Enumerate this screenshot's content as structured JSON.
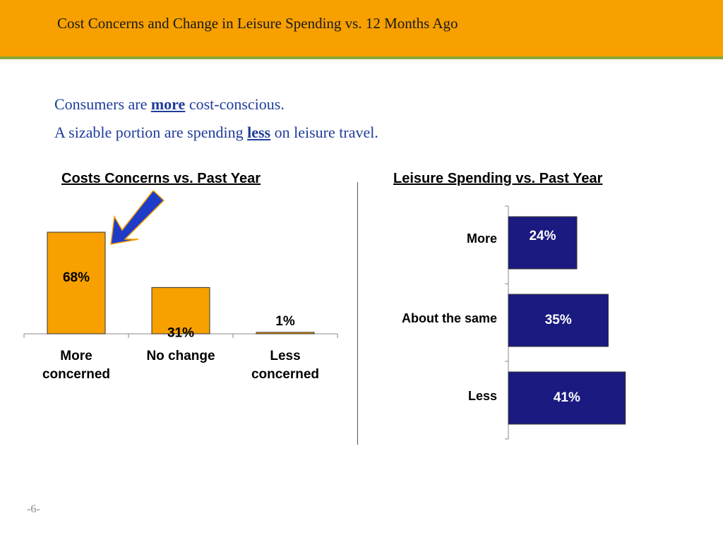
{
  "slide": {
    "title": "Cost Concerns and Change in Leisure Spending vs. 12 Months Ago",
    "line1": {
      "pre": "Consumers are ",
      "emph": "more",
      "post": " cost-conscious."
    },
    "line2": {
      "pre": "A sizable portion are spending ",
      "emph": "less",
      "post": " on leisure travel."
    },
    "page_number": "-6-"
  },
  "colors": {
    "header": "#f7a000",
    "header_rule": "#8aa83a",
    "bar_orange": "#f7a000",
    "bar_navy": "#1a1a80",
    "arrow": "#1f3cc8",
    "arrow_outline": "#f7a000"
  },
  "chart_data": [
    {
      "type": "bar",
      "title": "Costs Concerns vs. Past Year",
      "categories": [
        [
          "More",
          "concerned"
        ],
        [
          "No change"
        ],
        [
          "Less",
          "concerned"
        ]
      ],
      "values": [
        68,
        31,
        1
      ],
      "labels": [
        "68%",
        "31%",
        "1%"
      ],
      "ylim": [
        0,
        100
      ],
      "grid": false,
      "annotation": "arrow-icon pointing at More concerned bar"
    },
    {
      "type": "bar",
      "orientation": "horizontal",
      "title": "Leisure Spending vs. Past Year",
      "categories": [
        "More",
        "About the same",
        "Less"
      ],
      "values": [
        24,
        35,
        41
      ],
      "labels": [
        "24%",
        "35%",
        "41%"
      ],
      "xlim": [
        0,
        100
      ],
      "grid": false
    }
  ]
}
